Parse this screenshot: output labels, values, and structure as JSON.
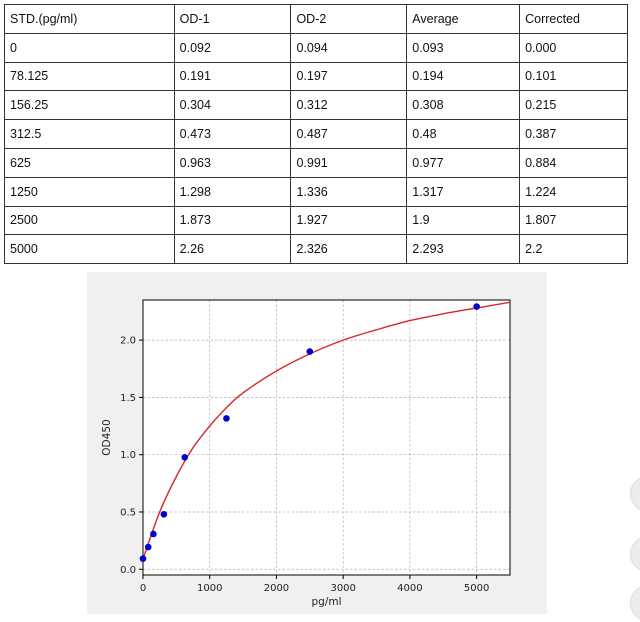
{
  "table": {
    "headers": [
      "STD.(pg/ml)",
      "OD-1",
      "OD-2",
      "Average",
      "Corrected"
    ],
    "rows": [
      [
        "0",
        "0.092",
        "0.094",
        "0.093",
        "0.000"
      ],
      [
        "78.125",
        "0.191",
        "0.197",
        "0.194",
        "0.101"
      ],
      [
        "156.25",
        "0.304",
        "0.312",
        "0.308",
        "0.215"
      ],
      [
        "312.5",
        "0.473",
        "0.487",
        "0.48",
        "0.387"
      ],
      [
        "625",
        "0.963",
        "0.991",
        "0.977",
        "0.884"
      ],
      [
        "1250",
        "1.298",
        "1.336",
        "1.317",
        "1.224"
      ],
      [
        "2500",
        "1.873",
        "1.927",
        "1.9",
        "1.807"
      ],
      [
        "5000",
        "2.26",
        "2.326",
        "2.293",
        "2.2"
      ]
    ]
  },
  "chart_data": {
    "type": "scatter",
    "title": "",
    "xlabel": "pg/ml",
    "ylabel": "OD450",
    "xlim": [
      0,
      5500
    ],
    "ylim": [
      -0.05,
      2.35
    ],
    "x_ticks": [
      0,
      1000,
      2000,
      3000,
      4000,
      5000
    ],
    "x_tick_labels": [
      "0",
      "1000",
      "2000",
      "3000",
      "4000",
      "5000"
    ],
    "y_ticks": [
      0.0,
      0.5,
      1.0,
      1.5,
      2.0
    ],
    "y_tick_labels": [
      "0.0",
      "0.5",
      "1.0",
      "1.5",
      "2.0"
    ],
    "grid": true,
    "series": [
      {
        "kind": "points",
        "color": "#0000cc",
        "x": [
          0,
          78.125,
          156.25,
          312.5,
          625,
          1250,
          2500,
          5000
        ],
        "y": [
          0.093,
          0.194,
          0.308,
          0.48,
          0.977,
          1.317,
          1.9,
          2.293
        ]
      },
      {
        "kind": "fit-curve",
        "color": "#d62728",
        "x": [
          0,
          250,
          500,
          750,
          1000,
          1250,
          1500,
          2000,
          2500,
          3000,
          3500,
          4000,
          4500,
          5000,
          5500
        ],
        "y": [
          0.09,
          0.5,
          0.81,
          1.06,
          1.25,
          1.41,
          1.54,
          1.73,
          1.88,
          2.0,
          2.09,
          2.17,
          2.23,
          2.28,
          2.33
        ]
      }
    ]
  },
  "colors": {
    "panel_bg": "#f0f0f0",
    "plot_bg": "#ffffff",
    "grid": "#b0b0b0",
    "points": "#0000cc",
    "curve": "#d62728"
  }
}
